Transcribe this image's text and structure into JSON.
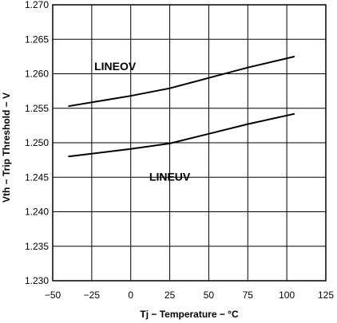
{
  "chart_data": {
    "type": "line",
    "title": "",
    "xlabel": "Tj − Temperature − °C",
    "ylabel": "Vth − Trip Threshold − V",
    "xlim": [
      -50,
      125
    ],
    "ylim": [
      1.23,
      1.27
    ],
    "x_ticks": [
      "−50",
      "−25",
      "0",
      "25",
      "50",
      "75",
      "100",
      "125"
    ],
    "y_ticks": [
      "1.230",
      "1.235",
      "1.240",
      "1.245",
      "1.250",
      "1.255",
      "1.260",
      "1.265",
      "1.270"
    ],
    "grid": true,
    "series": [
      {
        "name": "LINEOV",
        "x": [
          -40,
          0,
          25,
          50,
          75,
          105
        ],
        "values": [
          1.2553,
          1.2568,
          1.2579,
          1.2594,
          1.2609,
          1.2625
        ]
      },
      {
        "name": "LINEUV",
        "x": [
          -40,
          0,
          25,
          50,
          75,
          105
        ],
        "values": [
          1.248,
          1.2491,
          1.2499,
          1.2513,
          1.2527,
          1.2542
        ]
      }
    ]
  }
}
